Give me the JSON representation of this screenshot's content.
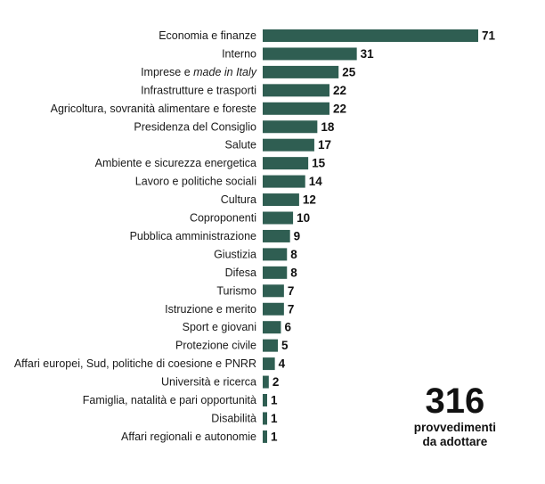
{
  "colors": {
    "bar": "#2f5e52",
    "text": "#1a1a1a"
  },
  "chart_data": {
    "type": "bar",
    "orientation": "horizontal",
    "categories": [
      "Economia e finanze",
      "Interno",
      "Imprese e made in Italy",
      "Infrastrutture e trasporti",
      "Agricoltura, sovranità alimentare e foreste",
      "Presidenza del Consiglio",
      "Salute",
      "Ambiente e sicurezza energetica",
      "Lavoro e politiche sociali",
      "Cultura",
      "Coproponenti",
      "Pubblica amministrazione",
      "Giustizia",
      "Difesa",
      "Turismo",
      "Istruzione e merito",
      "Sport e giovani",
      "Protezione civile",
      "Affari europei, Sud, politiche di coesione e PNRR",
      "Università e ricerca",
      "Famiglia, natalità e pari opportunità",
      "Disabilità",
      "Affari regionali e autonomie"
    ],
    "values": [
      71,
      31,
      25,
      22,
      22,
      18,
      17,
      15,
      14,
      12,
      10,
      9,
      8,
      8,
      7,
      7,
      6,
      5,
      4,
      2,
      1,
      1,
      1
    ],
    "title": "",
    "xlabel": "",
    "ylabel": "",
    "xlim": [
      0,
      71
    ],
    "grid": false,
    "data_labels": true
  },
  "total": {
    "value": "316",
    "caption_line1": "provvedimenti",
    "caption_line2": "da adottare"
  }
}
